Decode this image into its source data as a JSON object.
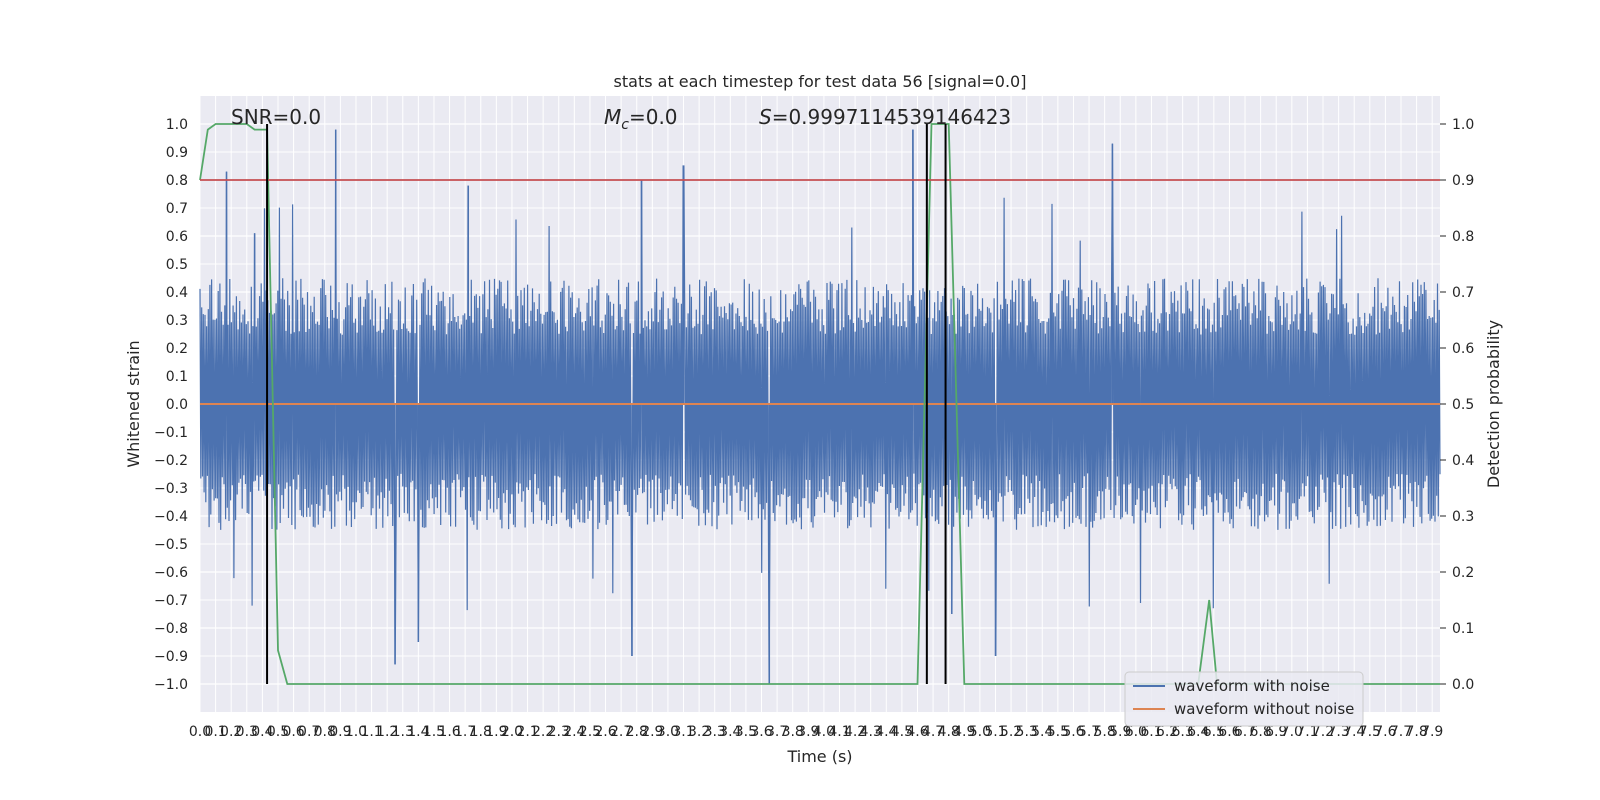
{
  "chart_data": {
    "type": "line",
    "title": "stats at each timestep for test data 56 [signal=0.0]",
    "xlabel": "Time (s)",
    "ylabel": "Whitened strain",
    "ylabel_right": "Detection probability",
    "xlim": [
      0.0,
      7.95
    ],
    "ylim": [
      -1.1,
      1.1
    ],
    "ylim_right": [
      -0.05,
      1.05
    ],
    "grid": true,
    "x_ticks": [
      "0.0",
      "0.1",
      "0.2",
      "0.3",
      "0.4",
      "0.5",
      "0.6",
      "0.7",
      "0.8",
      "0.9",
      "1.0",
      "1.1",
      "1.2",
      "1.3",
      "1.4",
      "1.5",
      "1.6",
      "1.7",
      "1.8",
      "1.9",
      "2.0",
      "2.1",
      "2.2",
      "2.3",
      "2.4",
      "2.5",
      "2.6",
      "2.7",
      "2.8",
      "2.9",
      "3.0",
      "3.1",
      "3.2",
      "3.3",
      "3.4",
      "3.5",
      "3.6",
      "3.7",
      "3.8",
      "3.9",
      "4.0",
      "4.1",
      "4.2",
      "4.3",
      "4.4",
      "4.5",
      "4.6",
      "4.7",
      "4.8",
      "4.9",
      "5.0",
      "5.1",
      "5.2",
      "5.3",
      "5.4",
      "5.5",
      "5.6",
      "5.7",
      "5.8",
      "5.9",
      "6.0",
      "6.1",
      "6.2",
      "6.3",
      "6.4",
      "6.5",
      "6.6",
      "6.7",
      "6.8",
      "6.9",
      "7.0",
      "7.1",
      "7.2",
      "7.3",
      "7.4",
      "7.5",
      "7.6",
      "7.7",
      "7.8",
      "7.9"
    ],
    "y_ticks": [
      "1.0",
      "0.9",
      "0.8",
      "0.7",
      "0.6",
      "0.5",
      "0.4",
      "0.3",
      "0.2",
      "0.1",
      "0.0",
      "−0.1",
      "−0.2",
      "−0.3",
      "−0.4",
      "−0.5",
      "−0.6",
      "−0.7",
      "−0.8",
      "−0.9",
      "−1.0"
    ],
    "y_ticks_right": [
      "1.0",
      "0.9",
      "0.8",
      "0.7",
      "0.6",
      "0.5",
      "0.4",
      "0.3",
      "0.2",
      "0.1",
      "0.0"
    ],
    "annotations": {
      "snr": "SNR=0.0",
      "mc_symbol": "M",
      "mc_sub": "c",
      "mc_value": "=0.0",
      "s_symbol": "S",
      "s_value": "=0.9997114539146423"
    },
    "series": [
      {
        "name": "waveform with noise",
        "color": "#4c72b0",
        "kind": "noise",
        "typical_range": [
          -0.45,
          0.45
        ],
        "extremes": [
          [
            0.17,
            0.83
          ],
          [
            0.35,
            0.61
          ],
          [
            0.87,
            0.98
          ],
          [
            1.72,
            0.78
          ],
          [
            2.83,
            0.8
          ],
          [
            3.1,
            0.85
          ],
          [
            3.65,
            -1.0
          ],
          [
            4.57,
            0.98
          ],
          [
            4.82,
            -0.75
          ],
          [
            5.1,
            -0.9
          ],
          [
            5.85,
            0.93
          ],
          [
            2.77,
            -0.9
          ],
          [
            1.25,
            -0.93
          ],
          [
            1.4,
            -0.85
          ]
        ]
      },
      {
        "name": "waveform without noise",
        "color": "#dd8452",
        "x": [
          0.0,
          7.95
        ],
        "y": [
          0.0,
          0.0
        ]
      },
      {
        "color": "#55a868",
        "axis": "right",
        "x": [
          0.0,
          0.05,
          0.1,
          0.2,
          0.3,
          0.35,
          0.4,
          0.43,
          0.5,
          0.56,
          4.6,
          4.69,
          4.8,
          4.9,
          4.94,
          6.4,
          6.47,
          6.52,
          7.95
        ],
        "y": [
          0.9,
          0.99,
          1.0,
          1.0,
          1.0,
          0.99,
          0.99,
          0.99,
          0.06,
          0.0,
          0.0,
          1.0,
          1.0,
          0.0,
          0.0,
          0.0,
          0.15,
          0.0,
          0.0
        ]
      },
      {
        "color": "#c44e52",
        "axis": "right",
        "x": [
          0.0,
          7.95
        ],
        "y": [
          0.9,
          0.9
        ]
      }
    ],
    "vertical_lines": [
      0.43,
      4.66,
      4.78
    ],
    "legend": {
      "placement": "lower right",
      "entries": [
        "waveform with noise",
        "waveform without noise"
      ]
    }
  }
}
